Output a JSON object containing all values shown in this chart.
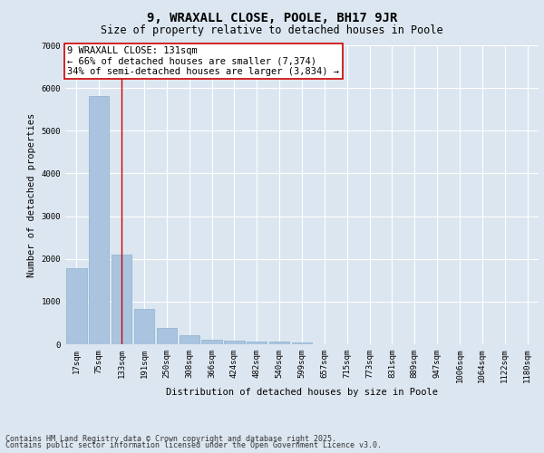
{
  "title": "9, WRAXALL CLOSE, POOLE, BH17 9JR",
  "subtitle": "Size of property relative to detached houses in Poole",
  "xlabel": "Distribution of detached houses by size in Poole",
  "ylabel": "Number of detached properties",
  "categories": [
    "17sqm",
    "75sqm",
    "133sqm",
    "191sqm",
    "250sqm",
    "308sqm",
    "366sqm",
    "424sqm",
    "482sqm",
    "540sqm",
    "599sqm",
    "657sqm",
    "715sqm",
    "773sqm",
    "831sqm",
    "889sqm",
    "947sqm",
    "1006sqm",
    "1064sqm",
    "1122sqm",
    "1180sqm"
  ],
  "values": [
    1780,
    5820,
    2100,
    830,
    380,
    220,
    100,
    90,
    65,
    60,
    50,
    0,
    0,
    0,
    0,
    0,
    0,
    0,
    0,
    0,
    0
  ],
  "bar_color": "#aac4e0",
  "bar_edge_color": "#8ab0cc",
  "vline_x_index": 2,
  "vline_color": "#cc0000",
  "annotation_text": "9 WRAXALL CLOSE: 131sqm\n← 66% of detached houses are smaller (7,374)\n34% of semi-detached houses are larger (3,834) →",
  "annotation_box_color": "#ffffff",
  "annotation_box_edge_color": "#cc0000",
  "ylim": [
    0,
    7000
  ],
  "yticks": [
    0,
    1000,
    2000,
    3000,
    4000,
    5000,
    6000,
    7000
  ],
  "background_color": "#dce6f0",
  "grid_color": "#ffffff",
  "footer_line1": "Contains HM Land Registry data © Crown copyright and database right 2025.",
  "footer_line2": "Contains public sector information licensed under the Open Government Licence v3.0.",
  "title_fontsize": 10,
  "subtitle_fontsize": 8.5,
  "axis_label_fontsize": 7.5,
  "tick_fontsize": 6.5,
  "annotation_fontsize": 7.5,
  "footer_fontsize": 6
}
